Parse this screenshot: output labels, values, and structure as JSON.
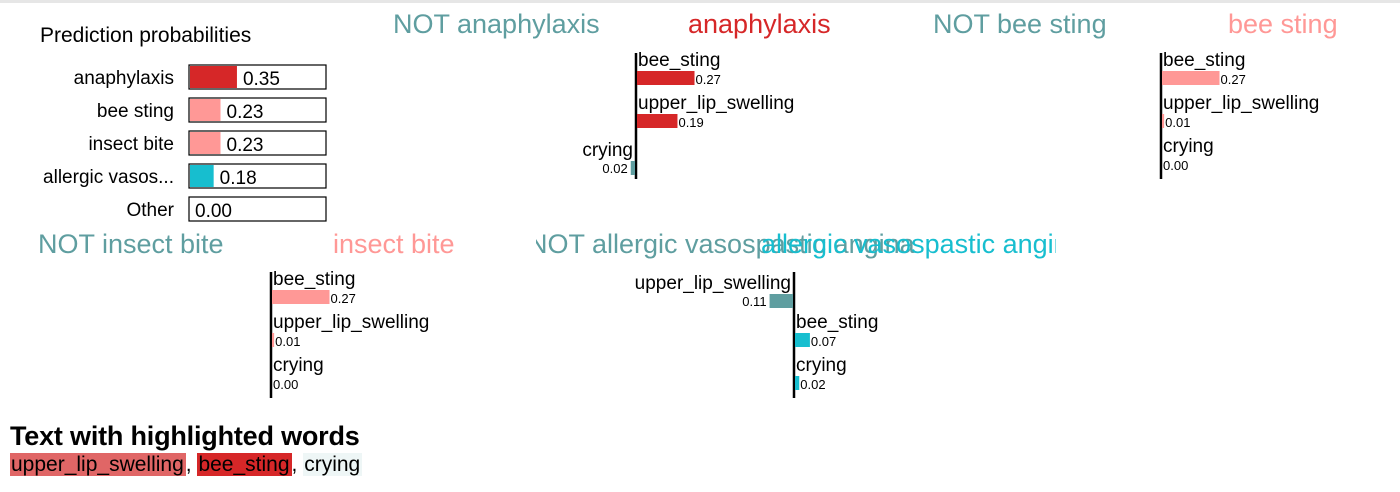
{
  "colors": {
    "anaphylaxis": "#d62728",
    "bee_sting": "#ff9896",
    "insect_bite": "#ff9896",
    "allergic_vasos": "#17becf",
    "other": "#999999",
    "not_label": "#5f9ea0",
    "not_bar": "#5f9ea0"
  },
  "prediction_probabilities": {
    "type": "bar",
    "title": "Prediction probabilities",
    "categories": [
      "anaphylaxis",
      "bee sting",
      "insect bite",
      "allergic vasos...",
      "Other"
    ],
    "values": [
      0.35,
      0.23,
      0.23,
      0.18,
      0.0
    ],
    "value_labels": [
      "0.35",
      "0.23",
      "0.23",
      "0.18",
      "0.00"
    ],
    "color_keys": [
      "anaphylaxis",
      "bee_sting",
      "insect_bite",
      "allergic_vasos",
      "other"
    ],
    "xlim": [
      0,
      1
    ]
  },
  "chart_data": [
    {
      "type": "bar",
      "not_label": "NOT anaphylaxis",
      "label": "anaphylaxis",
      "color_key": "anaphylaxis",
      "features": [
        {
          "name": "bee_sting",
          "value": 0.27,
          "label": "0.27"
        },
        {
          "name": "upper_lip_swelling",
          "value": 0.19,
          "label": "0.19"
        },
        {
          "name": "crying",
          "value": -0.02,
          "label": "0.02"
        }
      ]
    },
    {
      "type": "bar",
      "not_label": "NOT bee sting",
      "label": "bee sting",
      "color_key": "bee_sting",
      "features": [
        {
          "name": "bee_sting",
          "value": 0.27,
          "label": "0.27"
        },
        {
          "name": "upper_lip_swelling",
          "value": 0.01,
          "label": "0.01"
        },
        {
          "name": "crying",
          "value": 0.0,
          "label": "0.00"
        }
      ]
    },
    {
      "type": "bar",
      "not_label": "NOT insect bite",
      "label": "insect bite",
      "color_key": "insect_bite",
      "features": [
        {
          "name": "bee_sting",
          "value": 0.27,
          "label": "0.27"
        },
        {
          "name": "upper_lip_swelling",
          "value": 0.01,
          "label": "0.01"
        },
        {
          "name": "crying",
          "value": 0.0,
          "label": "0.00"
        }
      ]
    },
    {
      "type": "bar",
      "not_label": "NOT allergic vasospastic angina",
      "label": "allergic vasospastic angina",
      "color_key": "allergic_vasos",
      "features": [
        {
          "name": "upper_lip_swelling",
          "value": -0.11,
          "label": "0.11"
        },
        {
          "name": "bee_sting",
          "value": 0.07,
          "label": "0.07"
        },
        {
          "name": "crying",
          "value": 0.02,
          "label": "0.02"
        }
      ]
    }
  ],
  "highlighted_text": {
    "title": "Text with highlighted words",
    "words": [
      {
        "text": "upper_lip_swelling",
        "color": "#e06666",
        "sep": ", "
      },
      {
        "text": "bee_sting",
        "color": "#d62728",
        "sep": ", "
      },
      {
        "text": "crying",
        "color": "#eef6f6",
        "sep": ""
      }
    ]
  }
}
